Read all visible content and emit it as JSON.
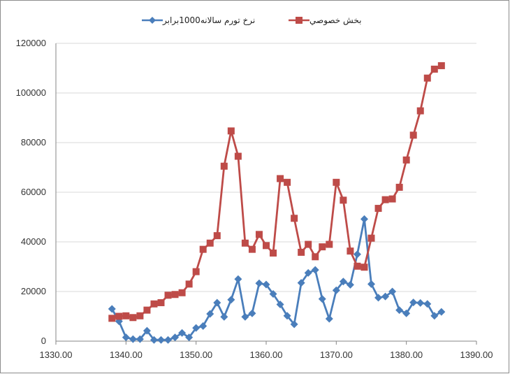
{
  "chart_data": {
    "type": "line",
    "title": "",
    "xlabel": "",
    "ylabel": "",
    "xlim": [
      1330,
      1390
    ],
    "ylim": [
      0,
      120000
    ],
    "x_ticks": [
      "1330.00",
      "1340.00",
      "1350.00",
      "1360.00",
      "1370.00",
      "1380.00",
      "1390.00"
    ],
    "y_ticks": [
      "0",
      "20000",
      "40000",
      "60000",
      "80000",
      "100000",
      "120000"
    ],
    "grid": "horizontal",
    "legend_position": "top",
    "x": [
      1338,
      1339,
      1340,
      1341,
      1342,
      1343,
      1344,
      1345,
      1346,
      1347,
      1348,
      1349,
      1350,
      1351,
      1352,
      1353,
      1354,
      1355,
      1356,
      1357,
      1358,
      1359,
      1360,
      1361,
      1362,
      1363,
      1364,
      1365,
      1366,
      1367,
      1368,
      1369,
      1370,
      1371,
      1372,
      1373,
      1374,
      1375,
      1376,
      1377,
      1378,
      1379,
      1380,
      1381,
      1382,
      1383,
      1384,
      1385
    ],
    "series": [
      {
        "name": "نرخ تورم سالانه1000برابر",
        "color": "#4a7ebb",
        "marker": "diamond",
        "values": [
          13000,
          8000,
          1500,
          800,
          800,
          4200,
          500,
          500,
          500,
          1500,
          3300,
          1500,
          5300,
          6100,
          11000,
          15500,
          9800,
          16700,
          25000,
          9800,
          11200,
          23300,
          22800,
          19000,
          14800,
          10200,
          6800,
          23500,
          27500,
          28700,
          17000,
          9000,
          20500,
          24000,
          22700,
          35000,
          49200,
          23000,
          17500,
          18000,
          20000,
          12500,
          11200,
          15600,
          15400,
          15000,
          10200,
          11800
        ]
      },
      {
        "name": "بخش خصوصي",
        "color": "#be4b48",
        "marker": "square",
        "values": [
          9200,
          10000,
          10200,
          9500,
          10200,
          12500,
          15000,
          15500,
          18500,
          18800,
          19500,
          23000,
          28000,
          37000,
          39500,
          42500,
          70500,
          84700,
          74500,
          39500,
          37000,
          43000,
          38500,
          35500,
          65500,
          64000,
          49500,
          35800,
          39000,
          34000,
          38000,
          39000,
          64000,
          56800,
          36300,
          30200,
          29800,
          41500,
          53500,
          57000,
          57300,
          62000,
          73000,
          83000,
          92800,
          106000,
          109600,
          111000
        ]
      }
    ]
  }
}
